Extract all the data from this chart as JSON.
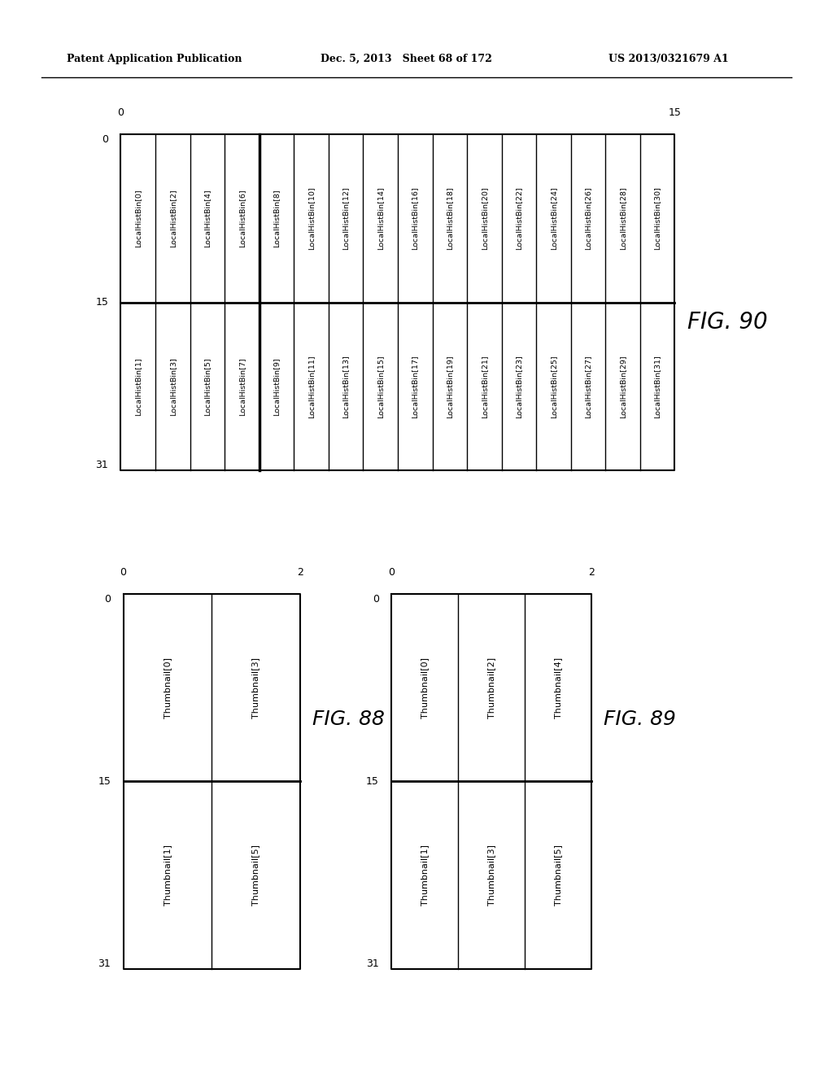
{
  "header_left": "Patent Application Publication",
  "header_center": "Dec. 5, 2013   Sheet 68 of 172",
  "header_right": "US 2013/0321679 A1",
  "fig90": {
    "title": "FIG. 90",
    "row1_cells": [
      "LocalHistBin[0]",
      "LocalHistBin[2]",
      "LocalHistBin[4]",
      "LocalHistBin[6]",
      "LocalHistBin[8]",
      "LocalHistBin[10]",
      "LocalHistBin[12]",
      "LocalHistBin[14]",
      "LocalHistBin[16]",
      "LocalHistBin[18]",
      "LocalHistBin[20]",
      "LocalHistBin[22]",
      "LocalHistBin[24]",
      "LocalHistBin[26]",
      "LocalHistBin[28]",
      "LocalHistBin[30]"
    ],
    "row2_cells": [
      "LocalHistBin[1]",
      "LocalHistBin[3]",
      "LocalHistBin[5]",
      "LocalHistBin[7]",
      "LocalHistBin[9]",
      "LocalHistBin[11]",
      "LocalHistBin[13]",
      "LocalHistBin[15]",
      "LocalHistBin[17]",
      "LocalHistBin[19]",
      "LocalHistBin[21]",
      "LocalHistBin[23]",
      "LocalHistBin[25]",
      "LocalHistBin[27]",
      "LocalHistBin[29]",
      "LocalHistBin[31]"
    ],
    "num_cols": 16,
    "left_labels": [
      "0",
      "15",
      "31"
    ],
    "top_labels": [
      "0",
      "15"
    ],
    "bold_col": 4
  },
  "fig88": {
    "title": "FIG. 88",
    "row1_cells": [
      "Thumbnail[0]",
      "Thumbnail[3]"
    ],
    "row2_cells": [
      "Thumbnail[1]",
      "Thumbnail[5]"
    ],
    "num_cols": 2,
    "left_labels": [
      "0",
      "15",
      "31"
    ],
    "top_labels": [
      "0",
      "2"
    ]
  },
  "fig89": {
    "title": "FIG. 89",
    "row1_cells": [
      "Thumbnail[0]",
      "Thumbnail[2]",
      "Thumbnail[4]"
    ],
    "row2_cells": [
      "Thumbnail[1]",
      "Thumbnail[3]",
      "Thumbnail[5]"
    ],
    "num_cols": 3,
    "left_labels": [
      "0",
      "15",
      "31"
    ],
    "top_labels": [
      "0",
      "2"
    ]
  },
  "bg_color": "#ffffff"
}
